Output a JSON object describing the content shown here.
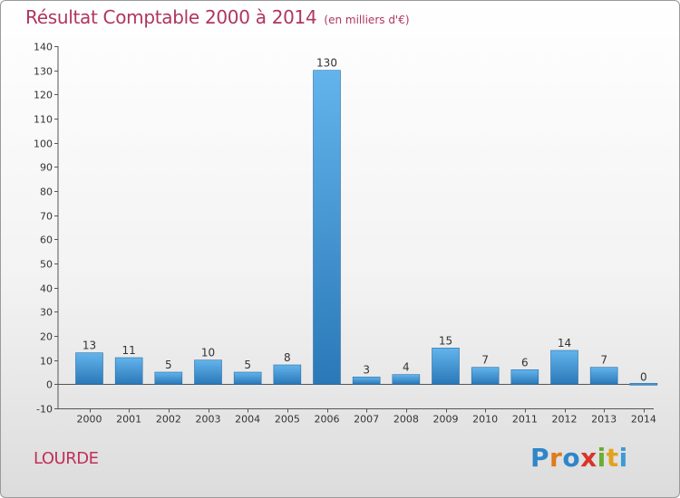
{
  "chart_data": {
    "type": "bar",
    "title": "Résultat Comptable 2000 à 2014",
    "subtitle": "(en milliers d'€)",
    "categories": [
      "2000",
      "2001",
      "2002",
      "2003",
      "2004",
      "2005",
      "2006",
      "2007",
      "2008",
      "2009",
      "2010",
      "2011",
      "2012",
      "2013",
      "2014"
    ],
    "values": [
      13,
      11,
      5,
      10,
      5,
      8,
      130,
      3,
      4,
      15,
      7,
      6,
      14,
      7,
      0
    ],
    "ylim": [
      -10,
      140
    ],
    "yticks": [
      -10,
      0,
      10,
      20,
      30,
      40,
      50,
      60,
      70,
      80,
      90,
      100,
      110,
      120,
      130,
      140
    ],
    "xlabel": "",
    "ylabel": "",
    "grid": false
  },
  "location": "LOURDE",
  "brand": {
    "letters": [
      "P",
      "r",
      "o",
      "x",
      "i",
      "t",
      "i"
    ]
  },
  "colors": {
    "title": "#b03560",
    "bar_light": "#63b4ec",
    "bar_dark": "#2a78b8"
  }
}
